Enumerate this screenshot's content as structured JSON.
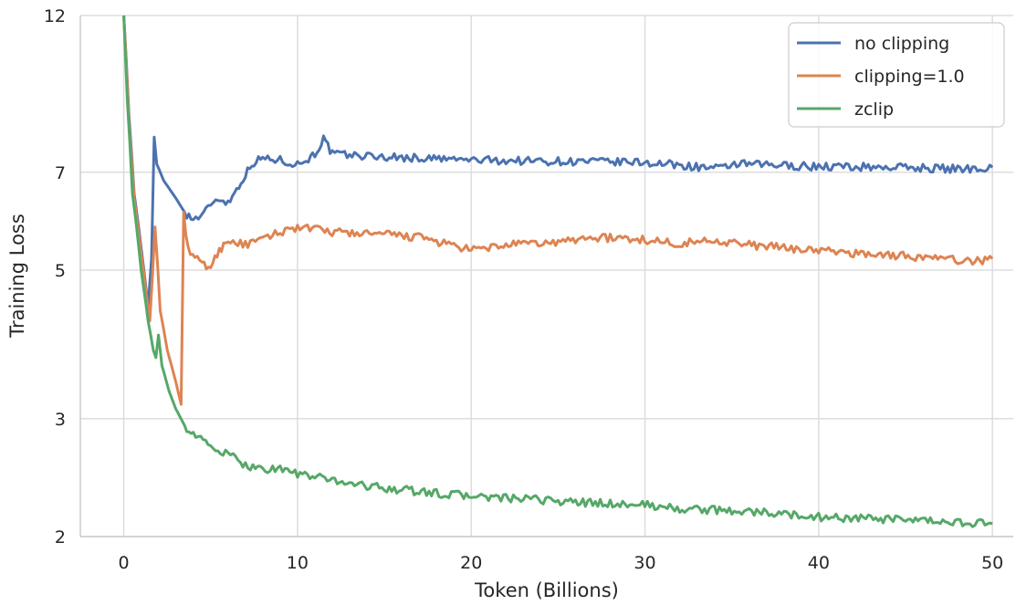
{
  "chart_data": {
    "type": "line",
    "title": "",
    "xlabel": "Token (Billions)",
    "ylabel": "Training Loss",
    "xlim": [
      -2.5,
      51.2
    ],
    "ylim": [
      2,
      12
    ],
    "y_scale": "log",
    "x_ticks": [
      0,
      10,
      20,
      30,
      40,
      50
    ],
    "y_ticks": [
      2,
      3,
      5,
      7,
      12
    ],
    "grid": true,
    "legend_position": "top-right",
    "series": [
      {
        "name": "no clipping",
        "color": "#4c72b0",
        "points": [
          [
            0,
            12
          ],
          [
            0.3,
            8.5
          ],
          [
            0.6,
            6.5
          ],
          [
            1.0,
            5.4
          ],
          [
            1.4,
            4.4
          ],
          [
            1.6,
            5.2
          ],
          [
            1.75,
            7.9
          ],
          [
            1.9,
            7.2
          ],
          [
            2.3,
            6.8
          ],
          [
            3.0,
            6.4
          ],
          [
            3.5,
            6.1
          ],
          [
            4.0,
            5.95
          ],
          [
            4.6,
            6.05
          ],
          [
            5.0,
            6.3
          ],
          [
            5.6,
            6.4
          ],
          [
            6.0,
            6.3
          ],
          [
            6.5,
            6.6
          ],
          [
            7.0,
            6.95
          ],
          [
            7.5,
            7.25
          ],
          [
            8.0,
            7.35
          ],
          [
            9.0,
            7.3
          ],
          [
            10.0,
            7.2
          ],
          [
            10.5,
            7.3
          ],
          [
            11.0,
            7.45
          ],
          [
            11.5,
            7.85
          ],
          [
            12.0,
            7.45
          ],
          [
            15,
            7.38
          ],
          [
            20,
            7.3
          ],
          [
            25,
            7.27
          ],
          [
            30,
            7.24
          ],
          [
            34.5,
            7.08
          ],
          [
            35,
            7.2
          ],
          [
            40,
            7.14
          ],
          [
            45,
            7.12
          ],
          [
            48,
            7.08
          ],
          [
            50,
            7.12
          ]
        ]
      },
      {
        "name": "clipping=1.0",
        "color": "#dd8452",
        "points": [
          [
            0,
            12
          ],
          [
            0.3,
            8.3
          ],
          [
            0.6,
            6.4
          ],
          [
            1.0,
            5.3
          ],
          [
            1.3,
            4.6
          ],
          [
            1.5,
            4.2
          ],
          [
            1.65,
            4.9
          ],
          [
            1.8,
            5.8
          ],
          [
            2.1,
            4.35
          ],
          [
            2.5,
            3.8
          ],
          [
            3.0,
            3.4
          ],
          [
            3.3,
            3.15
          ],
          [
            3.45,
            6.1
          ],
          [
            3.7,
            5.35
          ],
          [
            4.5,
            5.1
          ],
          [
            5.0,
            5.05
          ],
          [
            5.5,
            5.35
          ],
          [
            6.0,
            5.55
          ],
          [
            7.0,
            5.45
          ],
          [
            8.0,
            5.55
          ],
          [
            9.0,
            5.7
          ],
          [
            10.0,
            5.8
          ],
          [
            12.0,
            5.7
          ],
          [
            15.0,
            5.65
          ],
          [
            17.0,
            5.6
          ],
          [
            20.0,
            5.35
          ],
          [
            22.0,
            5.45
          ],
          [
            25.0,
            5.5
          ],
          [
            27.0,
            5.6
          ],
          [
            30.0,
            5.55
          ],
          [
            32.0,
            5.48
          ],
          [
            34.0,
            5.55
          ],
          [
            36.0,
            5.45
          ],
          [
            38.0,
            5.4
          ],
          [
            40.0,
            5.35
          ],
          [
            42.0,
            5.3
          ],
          [
            45.0,
            5.25
          ],
          [
            47.0,
            5.2
          ],
          [
            49.0,
            5.15
          ],
          [
            50.0,
            5.2
          ]
        ]
      },
      {
        "name": "zclip",
        "color": "#55a868",
        "points": [
          [
            0,
            12
          ],
          [
            0.2,
            9.0
          ],
          [
            0.5,
            6.5
          ],
          [
            1.0,
            5.0
          ],
          [
            1.4,
            4.2
          ],
          [
            1.7,
            3.8
          ],
          [
            1.85,
            3.7
          ],
          [
            2.0,
            4.0
          ],
          [
            2.2,
            3.6
          ],
          [
            2.6,
            3.3
          ],
          [
            3.0,
            3.1
          ],
          [
            3.5,
            2.93
          ],
          [
            4.0,
            2.85
          ],
          [
            5.0,
            2.72
          ],
          [
            6.0,
            2.65
          ],
          [
            7.0,
            2.56
          ],
          [
            8.0,
            2.52
          ],
          [
            9.0,
            2.53
          ],
          [
            10.0,
            2.48
          ],
          [
            12.0,
            2.43
          ],
          [
            14.0,
            2.38
          ],
          [
            16.0,
            2.35
          ],
          [
            18.0,
            2.32
          ],
          [
            20.0,
            2.3
          ],
          [
            22.0,
            2.28
          ],
          [
            24.0,
            2.27
          ],
          [
            26.0,
            2.25
          ],
          [
            28.0,
            2.24
          ],
          [
            30.0,
            2.23
          ],
          [
            32.0,
            2.2
          ],
          [
            34.0,
            2.19
          ],
          [
            36.0,
            2.18
          ],
          [
            38.0,
            2.16
          ],
          [
            40.0,
            2.14
          ],
          [
            42.0,
            2.13
          ],
          [
            44.0,
            2.12
          ],
          [
            46.0,
            2.11
          ],
          [
            48.0,
            2.1
          ],
          [
            50.0,
            2.09
          ]
        ]
      }
    ]
  }
}
